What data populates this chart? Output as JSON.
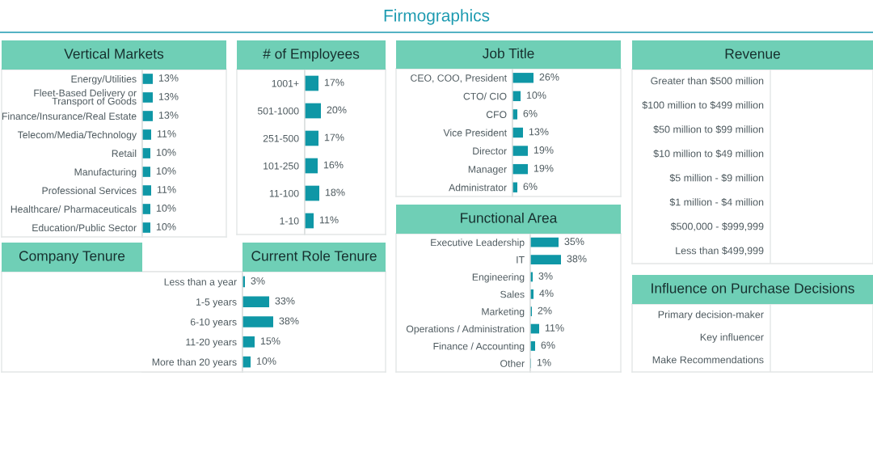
{
  "chart_data": [
    {
      "type": "other",
      "title": "Firmographics"
    },
    {
      "type": "bar",
      "orientation": "horizontal",
      "title": "Vertical Markets",
      "color": "#0f97a6",
      "categories": [
        "Energy/Utilities",
        "Fleet-Based Delivery or\nTransport of Goods",
        "Finance/Insurance/Real Estate",
        "Telecom/Media/Technology",
        "Retail",
        "Manufacturing",
        "Professional Services",
        "Healthcare/ Pharmaceuticals",
        "Education/Public Sector"
      ],
      "values": [
        13,
        13,
        13,
        11,
        10,
        10,
        11,
        10,
        10
      ],
      "value_labels": [
        "13%",
        "13%",
        "13%",
        "11%",
        "10%",
        "10%",
        "11%",
        "10%",
        "10%"
      ]
    },
    {
      "type": "bar",
      "orientation": "horizontal",
      "title": "# of Employees",
      "color": "#0f97a6",
      "categories": [
        "1001+",
        "501-1000",
        "251-500",
        "101-250",
        "11-100",
        "1-10"
      ],
      "values": [
        17,
        20,
        17,
        16,
        18,
        11
      ],
      "value_labels": [
        "17%",
        "20%",
        "17%",
        "16%",
        "18%",
        "11%"
      ]
    },
    {
      "type": "bar",
      "orientation": "horizontal",
      "title": "Job Title",
      "color": "#0f97a6",
      "categories": [
        "CEO, COO, President",
        "CTO/ CIO",
        "CFO",
        "Vice President",
        "Director",
        "Manager",
        "Administrator"
      ],
      "values": [
        26,
        10,
        6,
        13,
        19,
        19,
        6
      ],
      "value_labels": [
        "26%",
        "10%",
        "6%",
        "13%",
        "19%",
        "19%",
        "6%"
      ]
    },
    {
      "type": "other",
      "title": "Revenue",
      "annotations": [
        "Greater than $500 million",
        "$100 million to $499 million",
        "$50 million to $99 million",
        "$10 million to $49 million",
        "$5 million - $9 million",
        "$1 million - $4 million",
        "$500,000 - $999,999",
        "Less than $499,999"
      ]
    },
    {
      "type": "other",
      "title": "Company Tenure"
    },
    {
      "type": "bar",
      "orientation": "horizontal",
      "title": "Current Role Tenure",
      "color": "#0f97a6",
      "categories": [
        "Less than a year",
        "1-5 years",
        "6-10 years",
        "11-20 years",
        "More than 20 years"
      ],
      "values": [
        3,
        33,
        38,
        15,
        10
      ],
      "value_labels": [
        "3%",
        "33%",
        "38%",
        "15%",
        "10%"
      ]
    },
    {
      "type": "bar",
      "orientation": "horizontal",
      "title": "Functional Area",
      "color": "#0f97a6",
      "categories": [
        "Executive Leadership",
        "IT",
        "Engineering",
        "Sales",
        "Marketing",
        "Operations / Administration",
        "Finance / Accounting",
        "Other"
      ],
      "values": [
        35,
        38,
        3,
        4,
        2,
        11,
        6,
        1
      ],
      "value_labels": [
        "35%",
        "38%",
        "3%",
        "4%",
        "2%",
        "11%",
        "6%",
        "1%"
      ]
    },
    {
      "type": "other",
      "title": "Influence on Purchase Decisions",
      "annotations": [
        "Primary decision-maker",
        "Key influencer",
        "Make Recommendations"
      ]
    }
  ]
}
